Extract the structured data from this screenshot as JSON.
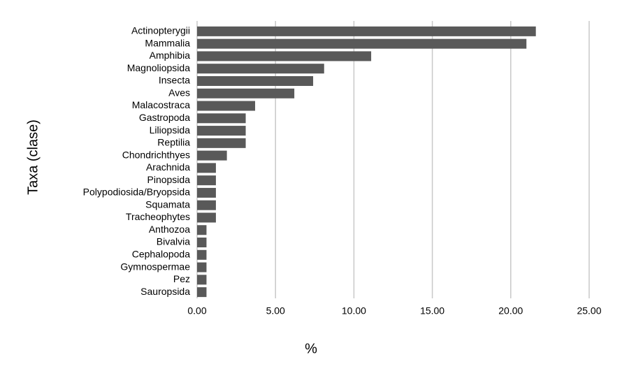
{
  "chart_data": {
    "type": "bar",
    "orientation": "horizontal",
    "xlabel": "%",
    "ylabel": "Taxa (clase)",
    "categories": [
      "Actinopterygii",
      "Mammalia",
      "Amphibia",
      "Magnoliopsida",
      "Insecta",
      "Aves",
      "Malacostraca",
      "Gastropoda",
      "Liliopsida",
      "Reptilia",
      "Chondrichthyes",
      "Arachnida",
      "Pinopsida",
      "Polypodiosida/Bryopsida",
      "Squamata",
      "Tracheophytes",
      "Anthozoa",
      "Bivalvia",
      "Cephalopoda",
      "Gymnospermae",
      "Pez",
      "Sauropsida"
    ],
    "values": [
      21.6,
      21.0,
      11.1,
      8.1,
      7.4,
      6.2,
      3.7,
      3.1,
      3.1,
      3.1,
      1.9,
      1.2,
      1.2,
      1.2,
      1.2,
      1.2,
      0.6,
      0.6,
      0.6,
      0.6,
      0.6,
      0.6
    ],
    "color": "#595959",
    "xlim": [
      0,
      25
    ],
    "xticks": [
      {
        "value": 0,
        "label": "0.00"
      },
      {
        "value": 5,
        "label": "5.00"
      },
      {
        "value": 10,
        "label": "10.00"
      },
      {
        "value": 15,
        "label": "15.00"
      },
      {
        "value": 20,
        "label": "20.00"
      },
      {
        "value": 25,
        "label": "25.00"
      }
    ],
    "grid": true
  }
}
